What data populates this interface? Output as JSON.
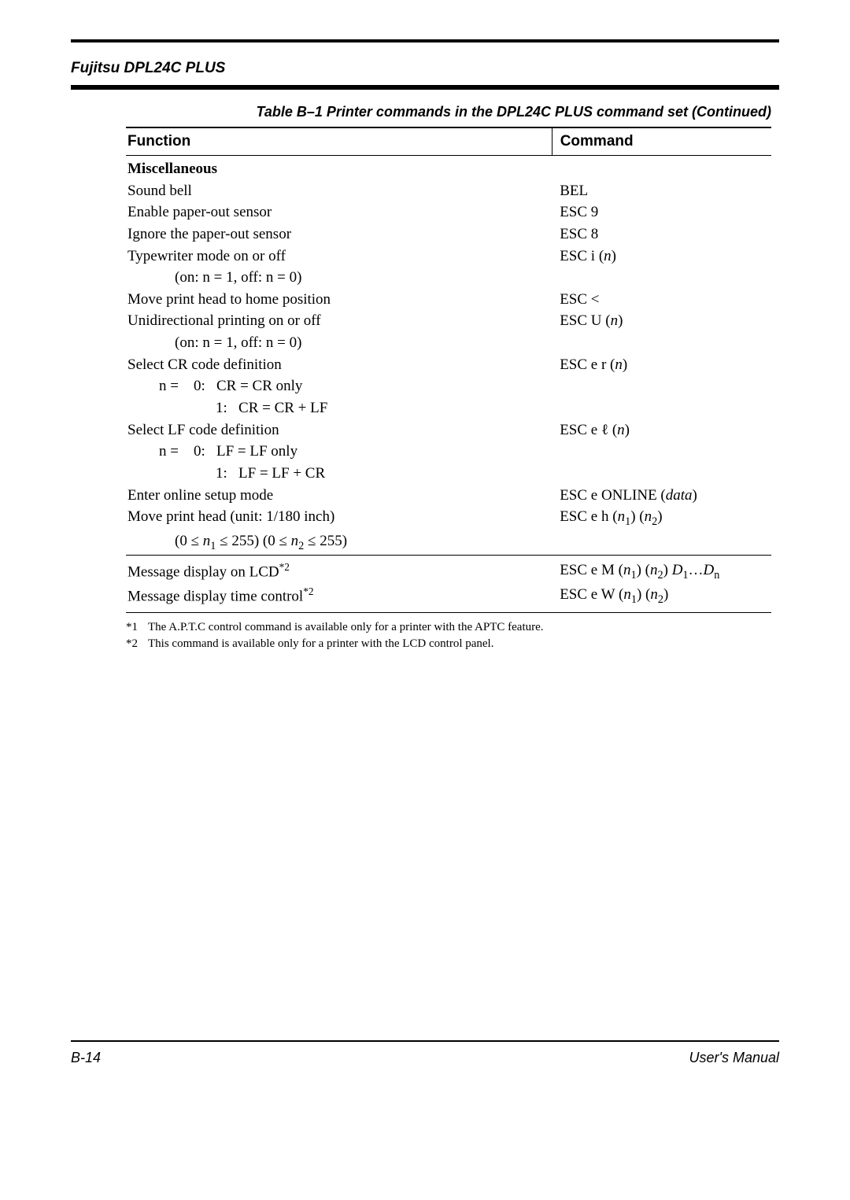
{
  "header": {
    "product": "Fujitsu DPL24C PLUS"
  },
  "caption": "Table B–1   Printer commands in the DPL24C PLUS command set (Continued)",
  "table": {
    "headers": {
      "function": "Function",
      "command": "Command"
    },
    "section": "Miscellaneous",
    "rows": [
      {
        "f": "Sound bell",
        "c": "BEL"
      },
      {
        "f": "Enable paper-out sensor",
        "c": "ESC 9"
      },
      {
        "f": "Ignore the paper-out sensor",
        "c": "ESC 8"
      },
      {
        "f": "Typewriter mode on or off",
        "c": "ESC i (n)",
        "ital_c": true
      },
      {
        "f_indent": "(on: n = 1, off: n = 0)"
      },
      {
        "f": "Move print head to home position",
        "c": "ESC <"
      },
      {
        "f": "Unidirectional printing on or off",
        "c": "ESC U (n)",
        "ital_c": true
      },
      {
        "f_indent": "(on: n = 1, off: n = 0)"
      },
      {
        "f": "Select CR code definition",
        "c": "ESC e r (n)",
        "ital_c": true
      },
      {
        "f_sub": "n =    0:   CR = CR only"
      },
      {
        "f_sub2": "1:   CR = CR + LF"
      },
      {
        "f": "Select LF code definition",
        "c": "ESC e ℓ (n)",
        "ital_c": true
      },
      {
        "f_sub": "n =    0:   LF = LF only"
      },
      {
        "f_sub2": "1:   LF = LF + CR"
      },
      {
        "f": "Enter online setup mode",
        "c_html": "ESC e ONLINE (<span class='ital'>data</span>)"
      },
      {
        "f": "Move print head (unit: 1/180 inch)",
        "c_html": "ESC e h (<span class='ital'>n</span><sub>1</sub>) (<span class='ital'>n</span><sub>2</sub>)"
      },
      {
        "f_html": "<span class='indent1'>(0 ≤ <span class='ital'>n</span><sub>1</sub> ≤ 255) (0 ≤ <span class='ital'>n</span><sub>2</sub> ≤ 255)</span>"
      }
    ],
    "rows2": [
      {
        "f_html": "Message display on LCD<sup>*2</sup>",
        "c_html": "ESC e M (<span class='ital'>n</span><sub>1</sub>) (<span class='ital'>n</span><sub>2</sub>) <span class='ital'>D</span><sub>1</sub>…<span class='ital'>D</span><sub>n</sub>"
      },
      {
        "f_html": "Message display time control<sup>*2</sup>",
        "c_html": "ESC e W (<span class='ital'>n</span><sub>1</sub>) (<span class='ital'>n</span><sub>2</sub>)"
      }
    ]
  },
  "footnotes": [
    {
      "label": "*1",
      "text": "The A.P.T.C control command is available only for a printer with the APTC feature."
    },
    {
      "label": "*2",
      "text": "This command is available only for a printer with the LCD control panel."
    }
  ],
  "footer": {
    "left": "B-14",
    "right": "User's Manual"
  }
}
